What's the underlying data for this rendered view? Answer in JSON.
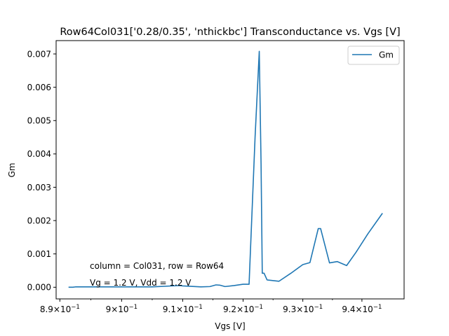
{
  "chart_data": {
    "type": "line",
    "title": "Row64Col031['0.28/0.35', 'nthickbc'] Transconductance vs. Vgs [V]",
    "xlabel": "Vgs [V]",
    "ylabel": "Gm",
    "xlim": [
      0.8894,
      0.9472
    ],
    "ylim": [
      -0.00035,
      0.0074
    ],
    "x_scale": "log",
    "x_ticks": [
      {
        "value": 0.89,
        "mantissa": "8.9"
      },
      {
        "value": 0.9,
        "mantissa": "9"
      },
      {
        "value": 0.91,
        "mantissa": "9.1"
      },
      {
        "value": 0.92,
        "mantissa": "9.2"
      },
      {
        "value": 0.93,
        "mantissa": "9.3"
      },
      {
        "value": 0.94,
        "mantissa": "9.4"
      }
    ],
    "x_tick_base": "10",
    "x_tick_exponent": "−1",
    "y_ticks": [
      0.0,
      0.001,
      0.002,
      0.003,
      0.004,
      0.005,
      0.006,
      0.007
    ],
    "y_tick_labels": [
      "0.000",
      "0.001",
      "0.002",
      "0.003",
      "0.004",
      "0.005",
      "0.006",
      "0.007"
    ],
    "grid": false,
    "legend_position": "top-right",
    "series": [
      {
        "name": "Gm",
        "color": "#1f77b4",
        "x": [
          0.8914,
          0.8921,
          0.8925,
          0.895,
          0.9,
          0.905,
          0.9095,
          0.91,
          0.913,
          0.9145,
          0.9155,
          0.9162,
          0.917,
          0.9185,
          0.92,
          0.921,
          0.922,
          0.9227,
          0.923,
          0.9232,
          0.9235,
          0.924,
          0.926,
          0.928,
          0.93,
          0.9312,
          0.9326,
          0.933,
          0.9345,
          0.9358,
          0.9374,
          0.939,
          0.941,
          0.9435
        ],
        "y": [
          0.0,
          0.0,
          1e-05,
          1e-05,
          1e-05,
          1e-05,
          5e-05,
          4e-05,
          1e-05,
          2e-05,
          7e-05,
          6e-05,
          2e-05,
          5e-05,
          9e-05,
          9e-05,
          0.0045,
          0.00708,
          0.0037,
          0.00042,
          0.00042,
          0.00022,
          0.00018,
          0.00042,
          0.00068,
          0.00074,
          0.00176,
          0.00176,
          0.00073,
          0.00077,
          0.00065,
          0.00105,
          0.0016,
          0.00222
        ]
      }
    ],
    "annotations": [
      {
        "text": "column = Col031, row = Row64"
      },
      {
        "text": "Vg = 1.2 V, Vdd = 1.2 V"
      }
    ]
  }
}
